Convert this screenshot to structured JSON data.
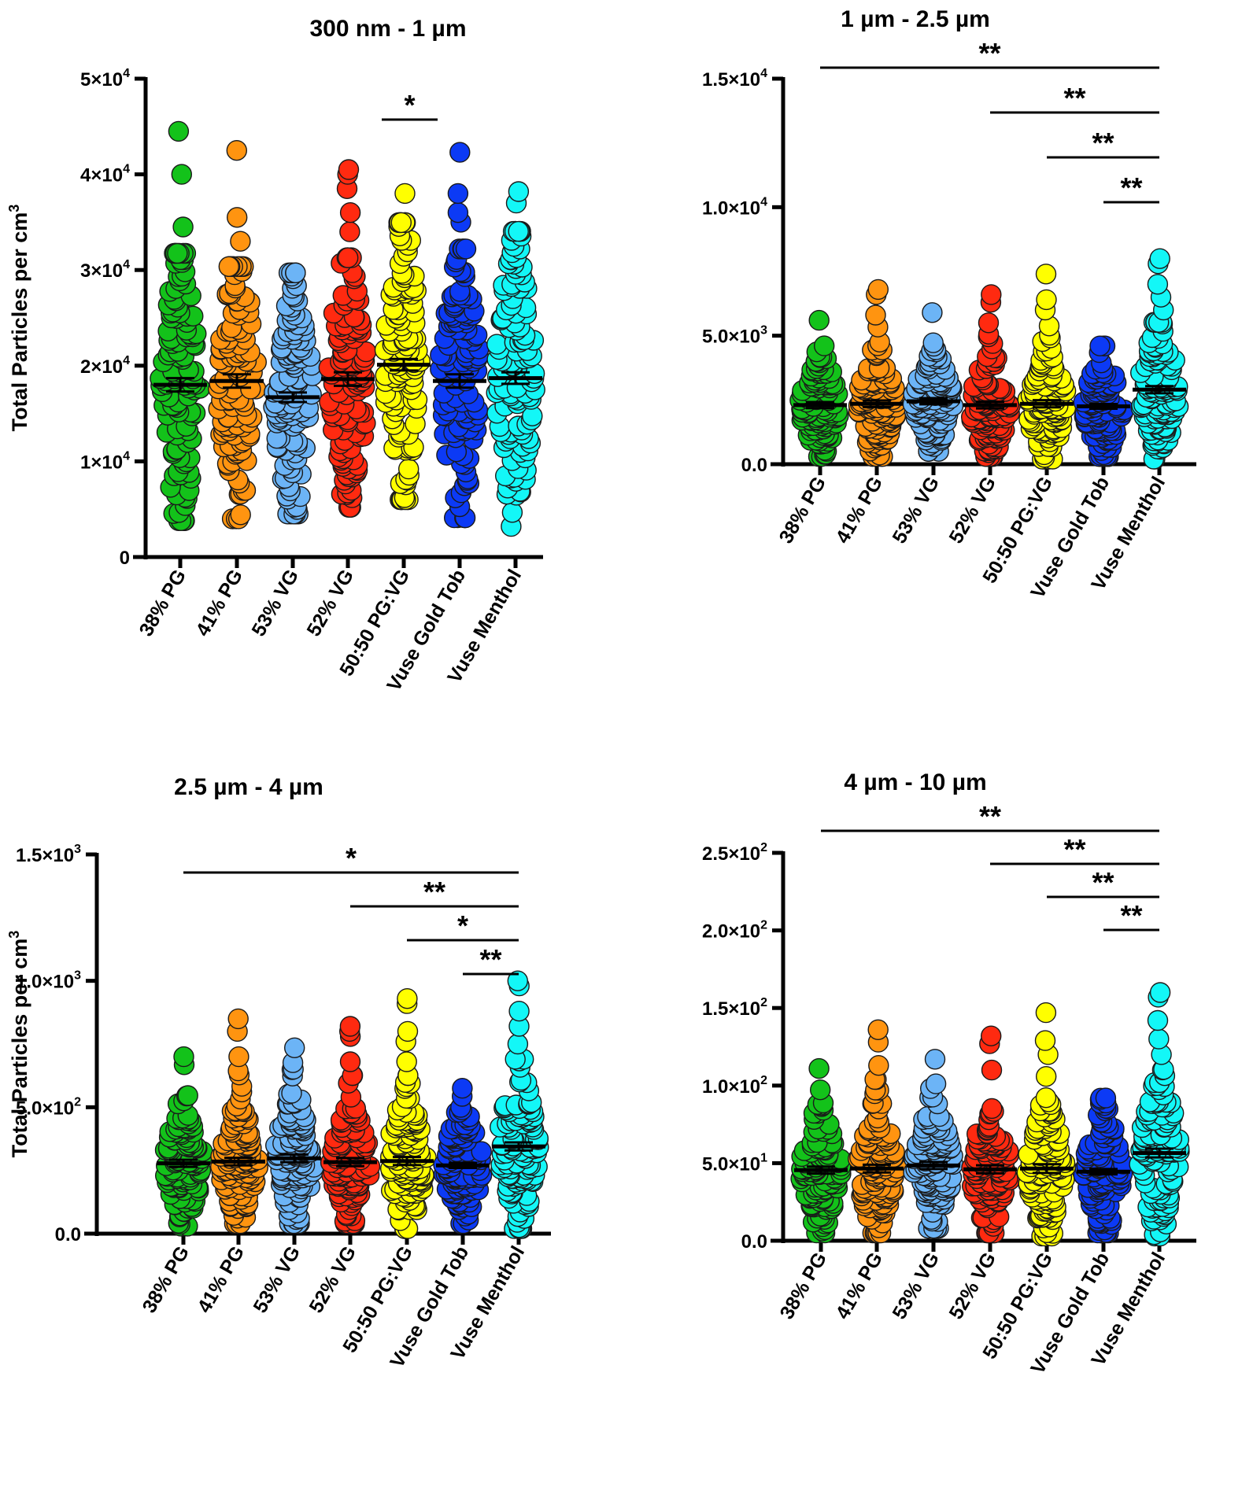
{
  "figure": {
    "y_axis_label": "Total Particles per cm",
    "y_axis_label_sup": "3"
  },
  "chart_data": [
    {
      "type": "scatter",
      "subtype": "dot-plot-mean-sem",
      "title": "300 nm - 1 µm",
      "ylabel": "Total Particles per cm3",
      "categories": [
        "38% PG",
        "41% PG",
        "53% VG",
        "52% VG",
        "50:50 PG:VG",
        "Vuse Gold Tob",
        "Vuse Menthol"
      ],
      "colors": [
        "#13c21a",
        "#ff9410",
        "#6cb4f6",
        "#ff2a10",
        "#ffff00",
        "#0c3af5",
        "#13f7f7"
      ],
      "ylim": [
        0,
        50000
      ],
      "yticks": [
        {
          "value": 0,
          "label": "0"
        },
        {
          "value": 10000,
          "label": "1×10",
          "exp": "4"
        },
        {
          "value": 20000,
          "label": "2×10",
          "exp": "4"
        },
        {
          "value": 30000,
          "label": "3×10",
          "exp": "4"
        },
        {
          "value": 40000,
          "label": "4×10",
          "exp": "4"
        },
        {
          "value": 50000,
          "label": "5×10",
          "exp": "4"
        }
      ],
      "series": [
        {
          "name": "38% PG",
          "mean": 18000,
          "sem": 700,
          "min": 3800,
          "max": 44500,
          "outliers": [
            44500,
            40000,
            34500
          ]
        },
        {
          "name": "41% PG",
          "mean": 18400,
          "sem": 700,
          "min": 4000,
          "max": 42500,
          "outliers": [
            42500,
            35500,
            33000
          ]
        },
        {
          "name": "53% VG",
          "mean": 16700,
          "sem": 500,
          "min": 4500,
          "max": 29700,
          "outliers": []
        },
        {
          "name": "52% VG",
          "mean": 18600,
          "sem": 700,
          "min": 5200,
          "max": 40500,
          "outliers": [
            40500,
            40000,
            38500,
            36000,
            34000
          ]
        },
        {
          "name": "50:50 PG:VG",
          "mean": 20100,
          "sem": 600,
          "min": 6000,
          "max": 38000,
          "outliers": [
            38000
          ]
        },
        {
          "name": "Vuse Gold Tob",
          "mean": 18400,
          "sem": 700,
          "min": 4100,
          "max": 42300,
          "outliers": [
            42300,
            38000,
            36000,
            35000
          ]
        },
        {
          "name": "Vuse Menthol",
          "mean": 18700,
          "sem": 600,
          "min": 3200,
          "max": 38200,
          "outliers": [
            38200,
            37000
          ]
        }
      ],
      "significance": [
        {
          "from": "50:50 PG:VG",
          "to": "Vuse Gold Tob",
          "label": "*"
        }
      ]
    },
    {
      "type": "scatter",
      "subtype": "dot-plot-mean-sem",
      "title": "1 µm - 2.5 µm",
      "ylabel": "",
      "categories": [
        "38% PG",
        "41% PG",
        "53% VG",
        "52% VG",
        "50:50 PG:VG",
        "Vuse Gold Tob",
        "Vuse Menthol"
      ],
      "colors": [
        "#13c21a",
        "#ff9410",
        "#6cb4f6",
        "#ff2a10",
        "#ffff00",
        "#0c3af5",
        "#13f7f7"
      ],
      "ylim": [
        0,
        15000
      ],
      "yticks": [
        {
          "value": 0,
          "label": "0.0"
        },
        {
          "value": 5000,
          "label": "5.0×10",
          "exp": "3"
        },
        {
          "value": 10000,
          "label": "1.0×10",
          "exp": "4"
        },
        {
          "value": 15000,
          "label": "1.5×10",
          "exp": "4"
        }
      ],
      "series": [
        {
          "name": "38% PG",
          "mean": 2300,
          "sem": 120,
          "min": 300,
          "max": 5600,
          "outliers": []
        },
        {
          "name": "41% PG",
          "mean": 2350,
          "sem": 130,
          "min": 300,
          "max": 6800,
          "outliers": [
            6800,
            6600,
            5800
          ]
        },
        {
          "name": "53% VG",
          "mean": 2450,
          "sem": 120,
          "min": 500,
          "max": 5900,
          "outliers": [
            5900
          ]
        },
        {
          "name": "52% VG",
          "mean": 2300,
          "sem": 130,
          "min": 300,
          "max": 6600,
          "outliers": [
            6600,
            6300,
            5500
          ]
        },
        {
          "name": "50:50 PG:VG",
          "mean": 2350,
          "sem": 140,
          "min": 200,
          "max": 7400,
          "outliers": [
            7400,
            6400,
            6000
          ]
        },
        {
          "name": "Vuse Gold Tob",
          "mean": 2250,
          "sem": 90,
          "min": 300,
          "max": 4600,
          "outliers": []
        },
        {
          "name": "Vuse Menthol",
          "mean": 2900,
          "sem": 140,
          "min": 200,
          "max": 8000,
          "outliers": [
            8000,
            7800,
            7000,
            6500,
            6000
          ]
        }
      ],
      "significance": [
        {
          "from": "38% PG",
          "to": "Vuse Menthol",
          "label": "**"
        },
        {
          "from": "52% VG",
          "to": "Vuse Menthol",
          "label": "**"
        },
        {
          "from": "50:50 PG:VG",
          "to": "Vuse Menthol",
          "label": "**"
        },
        {
          "from": "Vuse Gold Tob",
          "to": "Vuse Menthol",
          "label": "**"
        }
      ]
    },
    {
      "type": "scatter",
      "subtype": "dot-plot-mean-sem",
      "title": "2.5 µm - 4 µm",
      "ylabel": "Total Particles per cm3",
      "categories": [
        "38% PG",
        "41% PG",
        "53% VG",
        "52% VG",
        "50:50 PG:VG",
        "Vuse Gold Tob",
        "Vuse Menthol"
      ],
      "colors": [
        "#13c21a",
        "#ff9410",
        "#6cb4f6",
        "#ff2a10",
        "#ffff00",
        "#0c3af5",
        "#13f7f7"
      ],
      "ylim": [
        0,
        1500
      ],
      "yticks": [
        {
          "value": 0,
          "label": "0.0"
        },
        {
          "value": 500,
          "label": "5.0×10",
          "exp": "2"
        },
        {
          "value": 1000,
          "label": "1.0×10",
          "exp": "3"
        },
        {
          "value": 1500,
          "label": "1.5×10",
          "exp": "3"
        }
      ],
      "series": [
        {
          "name": "38% PG",
          "mean": 278,
          "sem": 14,
          "min": 30,
          "max": 700,
          "outliers": []
        },
        {
          "name": "41% PG",
          "mean": 285,
          "sem": 15,
          "min": 40,
          "max": 850,
          "outliers": [
            850,
            800,
            700
          ]
        },
        {
          "name": "53% VG",
          "mean": 298,
          "sem": 15,
          "min": 40,
          "max": 735,
          "outliers": [
            735
          ]
        },
        {
          "name": "52% VG",
          "mean": 283,
          "sem": 16,
          "min": 40,
          "max": 820,
          "outliers": [
            820,
            800,
            780,
            680
          ]
        },
        {
          "name": "50:50 PG:VG",
          "mean": 287,
          "sem": 16,
          "min": 20,
          "max": 930,
          "outliers": [
            930,
            910,
            800,
            760,
            680
          ]
        },
        {
          "name": "Vuse Gold Tob",
          "mean": 270,
          "sem": 10,
          "min": 40,
          "max": 575,
          "outliers": []
        },
        {
          "name": "Vuse Menthol",
          "mean": 345,
          "sem": 16,
          "min": 20,
          "max": 1000,
          "outliers": [
            1000,
            980,
            880,
            820,
            750
          ]
        }
      ],
      "significance": [
        {
          "from": "38% PG",
          "to": "Vuse Menthol",
          "label": "*"
        },
        {
          "from": "52% VG",
          "to": "Vuse Menthol",
          "label": "**"
        },
        {
          "from": "50:50 PG:VG",
          "to": "Vuse Menthol",
          "label": "*"
        },
        {
          "from": "Vuse Gold Tob",
          "to": "Vuse Menthol",
          "label": "**"
        }
      ]
    },
    {
      "type": "scatter",
      "subtype": "dot-plot-mean-sem",
      "title": "4 µm - 10 µm",
      "ylabel": "",
      "categories": [
        "38% PG",
        "41% PG",
        "53% VG",
        "52% VG",
        "50:50 PG:VG",
        "Vuse Gold Tob",
        "Vuse Menthol"
      ],
      "colors": [
        "#13c21a",
        "#ff9410",
        "#6cb4f6",
        "#ff2a10",
        "#ffff00",
        "#0c3af5",
        "#13f7f7"
      ],
      "ylim": [
        0,
        250
      ],
      "yticks": [
        {
          "value": 0,
          "label": "0.0"
        },
        {
          "value": 50,
          "label": "5.0×10",
          "exp": "1"
        },
        {
          "value": 100,
          "label": "1.0×10",
          "exp": "2"
        },
        {
          "value": 150,
          "label": "1.5×10",
          "exp": "2"
        },
        {
          "value": 200,
          "label": "2.0×10",
          "exp": "2"
        },
        {
          "value": 250,
          "label": "2.5×10",
          "exp": "2"
        }
      ],
      "series": [
        {
          "name": "38% PG",
          "mean": 45.5,
          "sem": 2.3,
          "min": 5,
          "max": 111,
          "outliers": []
        },
        {
          "name": "41% PG",
          "mean": 46.5,
          "sem": 2.5,
          "min": 5,
          "max": 136,
          "outliers": [
            136,
            128,
            113
          ]
        },
        {
          "name": "53% VG",
          "mean": 48.5,
          "sem": 2.3,
          "min": 8,
          "max": 117,
          "outliers": [
            117
          ]
        },
        {
          "name": "52% VG",
          "mean": 46,
          "sem": 2.6,
          "min": 5,
          "max": 132,
          "outliers": [
            132,
            127,
            110
          ]
        },
        {
          "name": "50:50 PG:VG",
          "mean": 46.5,
          "sem": 2.8,
          "min": 3,
          "max": 147,
          "outliers": [
            147,
            129,
            120
          ]
        },
        {
          "name": "Vuse Gold Tob",
          "mean": 44.5,
          "sem": 1.7,
          "min": 5,
          "max": 92,
          "outliers": []
        },
        {
          "name": "Vuse Menthol",
          "mean": 56.5,
          "sem": 2.8,
          "min": 3,
          "max": 160,
          "outliers": [
            160,
            157,
            142,
            130,
            120
          ]
        }
      ],
      "significance": [
        {
          "from": "38% PG",
          "to": "Vuse Menthol",
          "label": "**"
        },
        {
          "from": "52% VG",
          "to": "Vuse Menthol",
          "label": "**"
        },
        {
          "from": "50:50 PG:VG",
          "to": "Vuse Menthol",
          "label": "**"
        },
        {
          "from": "Vuse Gold Tob",
          "to": "Vuse Menthol",
          "label": "**"
        }
      ]
    }
  ]
}
